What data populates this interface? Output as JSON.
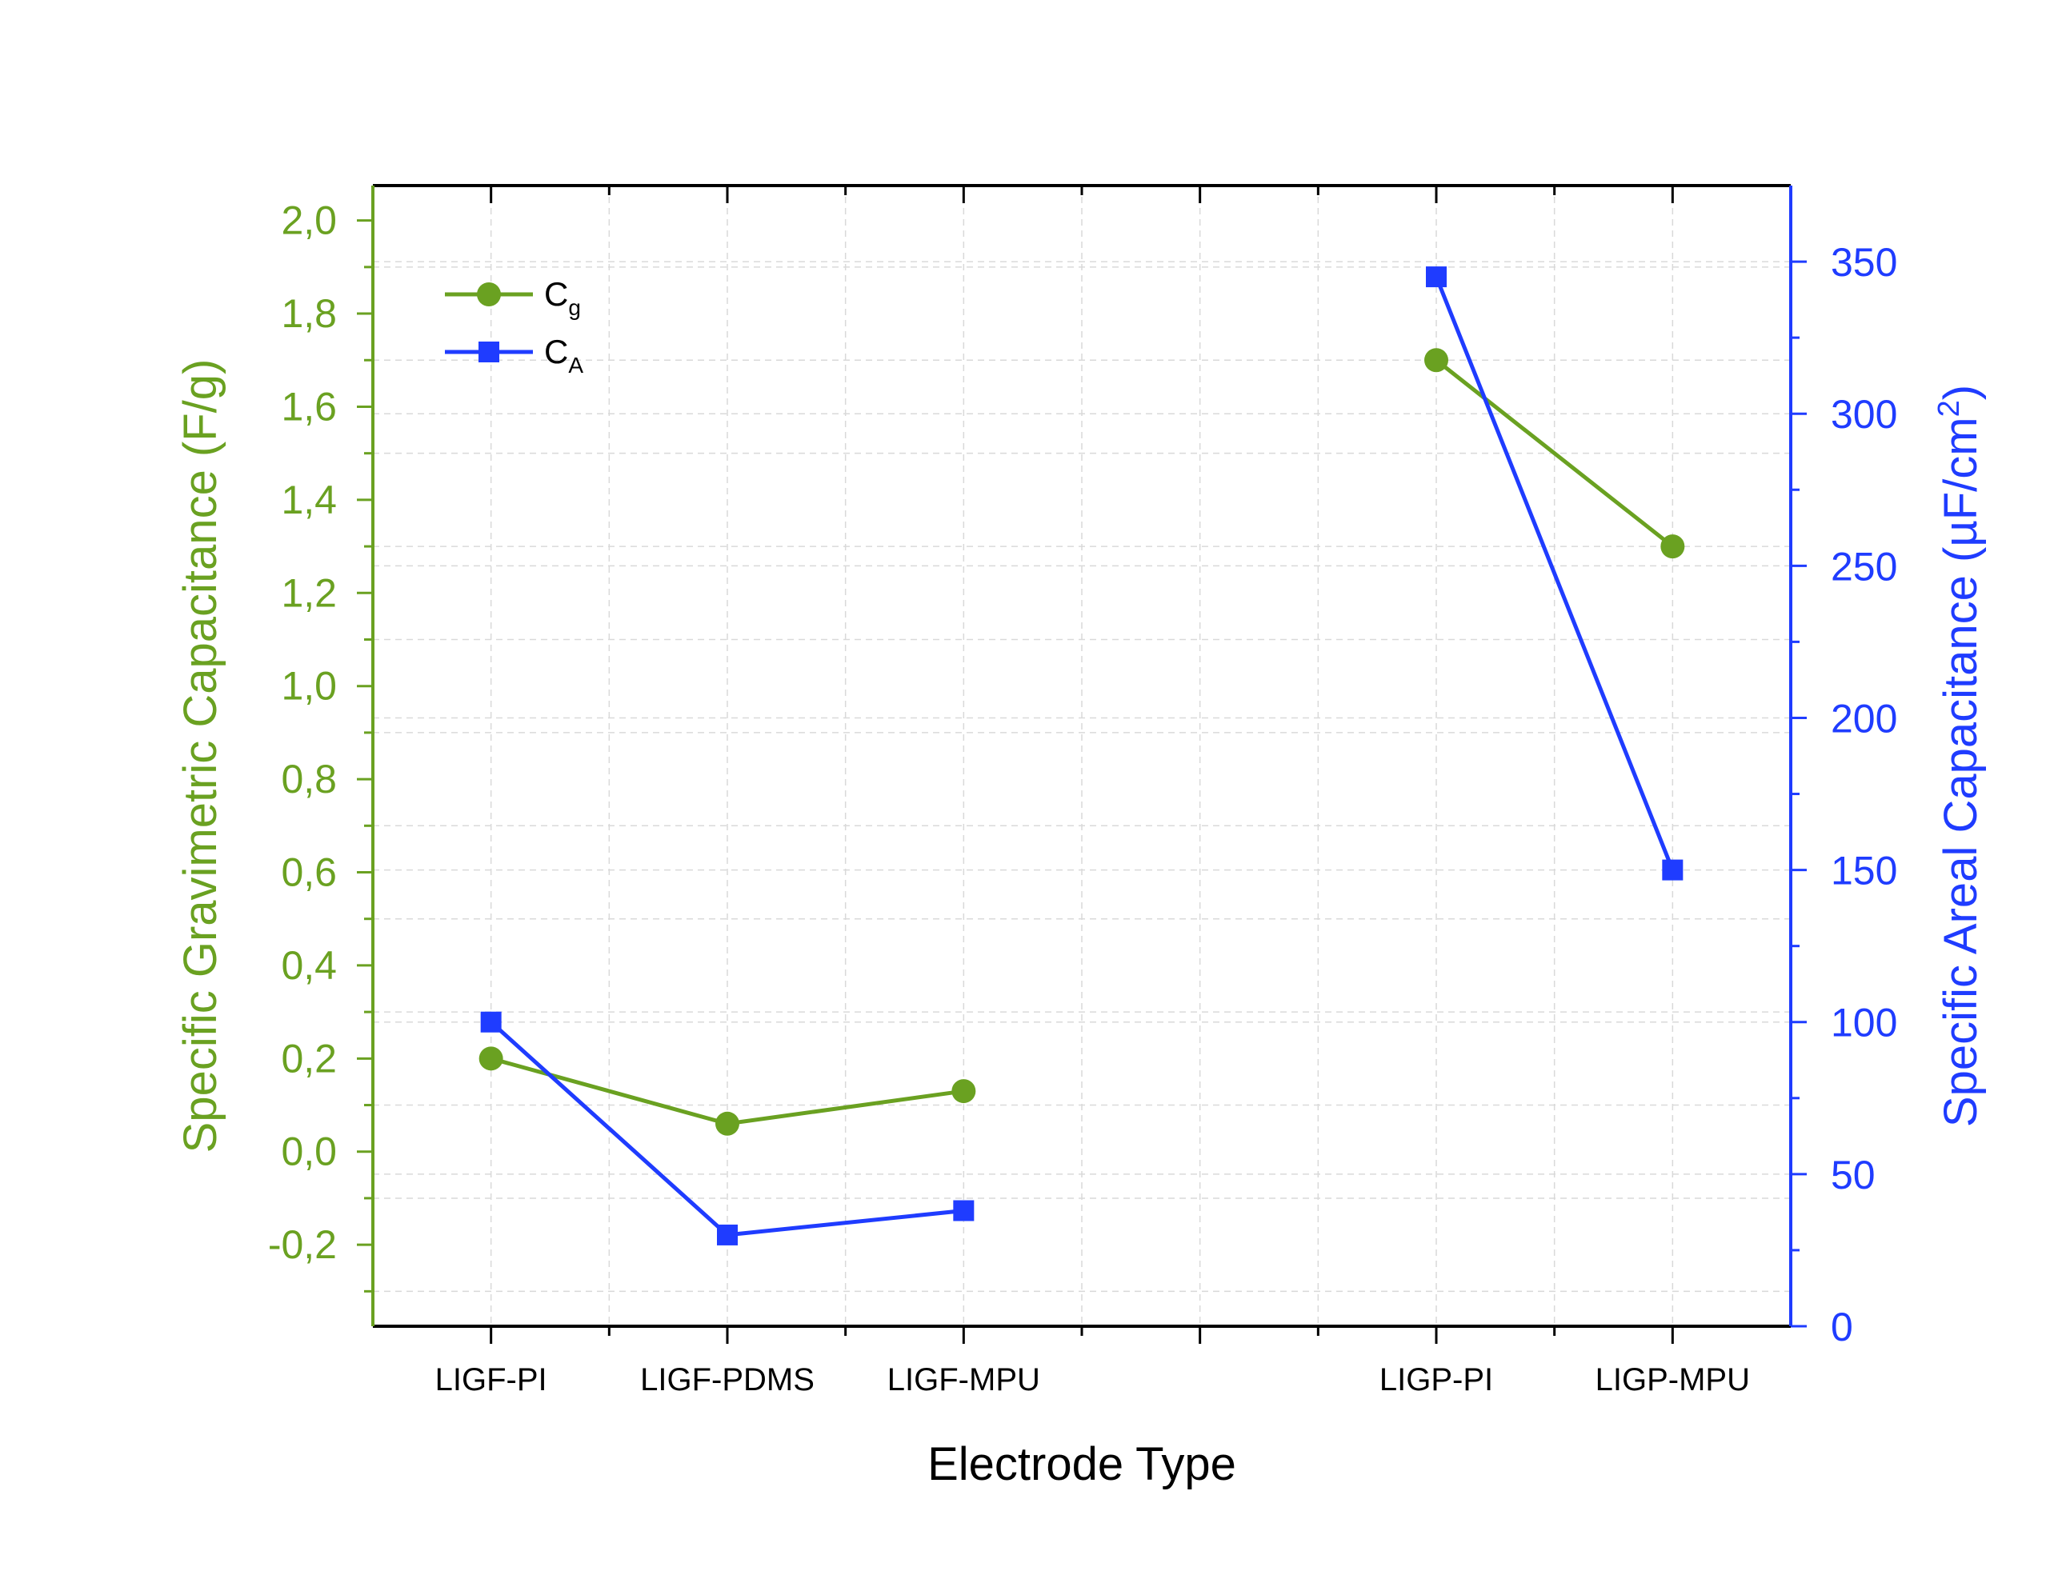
{
  "chart_data": {
    "type": "line",
    "xlabel": "Electrode Type",
    "categories": [
      "LIGF-PI",
      "LIGF-PDMS",
      "LIGF-MPU",
      "",
      "LIGP-PI",
      "LIGP-MPU"
    ],
    "x_positions": [
      1,
      2,
      3,
      4,
      5,
      6
    ],
    "xlim": [
      0.5,
      6.5
    ],
    "left_axis": {
      "label": "Specific Gravimetric Capacitance (F/g)",
      "ylim": [
        -0.375,
        2.075
      ],
      "ticks": [
        -0.2,
        0.0,
        0.2,
        0.4,
        0.6,
        0.8,
        1.0,
        1.2,
        1.4,
        1.6,
        1.8,
        2.0
      ],
      "tick_labels": [
        "-0,2",
        "0,0",
        "0,2",
        "0,4",
        "0,6",
        "0,8",
        "1,0",
        "1,2",
        "1,4",
        "1,6",
        "1,8",
        "2,0"
      ],
      "color": "#6aa121"
    },
    "right_axis": {
      "label_main": "Specific Areal Capacitance (µF/cm",
      "label_sup": "2",
      "label_end": ")",
      "ylim": [
        0,
        375
      ],
      "ticks": [
        0,
        50,
        100,
        150,
        200,
        250,
        300,
        350
      ],
      "tick_labels": [
        "0",
        "50",
        "100",
        "150",
        "200",
        "250",
        "300",
        "350"
      ],
      "color": "#1f3cff"
    },
    "series": [
      {
        "name_main": "C",
        "name_sub": "g",
        "axis": "left",
        "marker": "circle",
        "color": "#6aa121",
        "segments": [
          [
            {
              "x": 1,
              "y": 0.2
            },
            {
              "x": 2,
              "y": 0.06
            },
            {
              "x": 3,
              "y": 0.13
            }
          ],
          [
            {
              "x": 5,
              "y": 1.7
            },
            {
              "x": 6,
              "y": 1.3
            }
          ]
        ]
      },
      {
        "name_main": "C",
        "name_sub": "A",
        "axis": "right",
        "marker": "square",
        "color": "#1f3cff",
        "segments": [
          [
            {
              "x": 1,
              "y": 100
            },
            {
              "x": 2,
              "y": 30
            },
            {
              "x": 3,
              "y": 38
            }
          ],
          [
            {
              "x": 5,
              "y": 345
            },
            {
              "x": 6,
              "y": 150
            }
          ]
        ]
      }
    ],
    "grid": true,
    "legend": "top-left"
  }
}
